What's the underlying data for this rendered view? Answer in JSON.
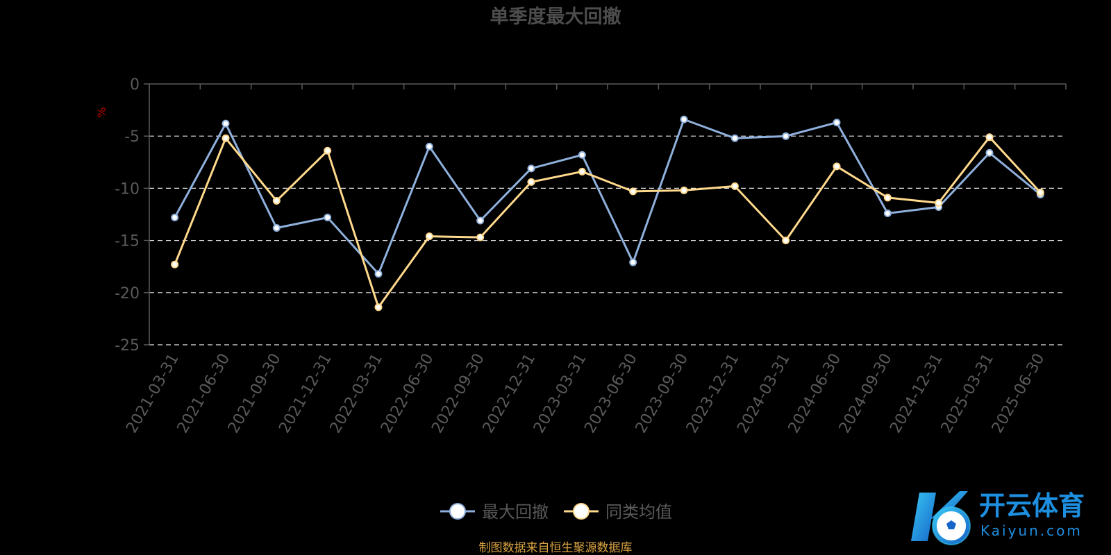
{
  "colors": {
    "background": "#000000",
    "series_max_drawdown": "#8fb0dc",
    "series_peer_avg": "#ffd98c",
    "grid": "#ffffff",
    "axis": "#5a5a5a",
    "unit": "#c00000",
    "source": "#d9a341",
    "watermark": "#1e8fe0"
  },
  "source_note": "制图数据来自恒生聚源数据库",
  "watermark": {
    "brand_cn": "开云体育",
    "brand_en": "Kaiyun.com",
    "logo_icon": "kaiyun-k-soccer-ball-logo"
  },
  "chart_data": {
    "type": "line",
    "title": "单季度最大回撤",
    "ylabel": "%",
    "ylim": [
      -25,
      0
    ],
    "yticks": [
      0,
      -5,
      -10,
      -15,
      -20,
      -25
    ],
    "grid": true,
    "legend_position": "bottom",
    "categories": [
      "2021-03-31",
      "2021-06-30",
      "2021-09-30",
      "2021-12-31",
      "2022-03-31",
      "2022-06-30",
      "2022-09-30",
      "2022-12-31",
      "2023-03-31",
      "2023-06-30",
      "2023-09-30",
      "2023-12-31",
      "2024-03-31",
      "2024-06-30",
      "2024-09-30",
      "2024-12-31",
      "2025-03-31",
      "2025-06-30"
    ],
    "series": [
      {
        "name": "最大回撤",
        "color": "#8fb0dc",
        "values": [
          -12.8,
          -3.8,
          -13.8,
          -12.8,
          -18.2,
          -6.0,
          -13.1,
          -8.1,
          -6.8,
          -17.1,
          -3.4,
          -5.2,
          -5.0,
          -3.7,
          -12.4,
          -11.8,
          -6.6,
          -10.6
        ]
      },
      {
        "name": "同类均值",
        "color": "#ffd98c",
        "values": [
          -17.3,
          -5.2,
          -11.2,
          -6.4,
          -21.4,
          -14.6,
          -14.7,
          -9.4,
          -8.4,
          -10.3,
          -10.2,
          -9.8,
          -15.0,
          -7.9,
          -10.9,
          -11.4,
          -5.1,
          -10.4
        ]
      }
    ]
  }
}
